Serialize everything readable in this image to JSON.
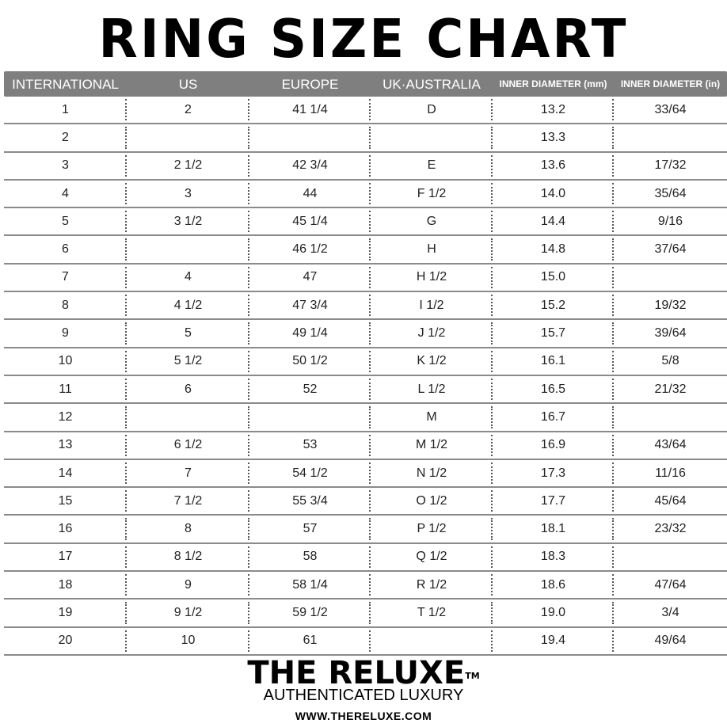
{
  "title": "RING SIZE CHART",
  "headers": [
    "INTERNATIONAL",
    "US",
    "EUROPE",
    "UK·AUSTRALIA",
    "INNER DIAMETER (mm)",
    "INNER DIAMETER (in)"
  ],
  "rows": [
    [
      "1",
      "2",
      "41 1/4",
      "D",
      "13.2",
      "33/64"
    ],
    [
      "2",
      "",
      "",
      "",
      "13.3",
      ""
    ],
    [
      "3",
      "2 1/2",
      "42 3/4",
      "E",
      "13.6",
      "17/32"
    ],
    [
      "4",
      "3",
      "44",
      "F 1/2",
      "14.0",
      "35/64"
    ],
    [
      "5",
      "3 1/2",
      "45 1/4",
      "G",
      "14.4",
      "9/16"
    ],
    [
      "6",
      "",
      "46 1/2",
      "H",
      "14.8",
      "37/64"
    ],
    [
      "7",
      "4",
      "47",
      "H 1/2",
      "15.0",
      ""
    ],
    [
      "8",
      "4 1/2",
      "47 3/4",
      "I 1/2",
      "15.2",
      "19/32"
    ],
    [
      "9",
      "5",
      "49 1/4",
      "J 1/2",
      "15.7",
      "39/64"
    ],
    [
      "10",
      "5 1/2",
      "50 1/2",
      "K 1/2",
      "16.1",
      "5/8"
    ],
    [
      "11",
      "6",
      "52",
      "L 1/2",
      "16.5",
      "21/32"
    ],
    [
      "12",
      "",
      "",
      "M",
      "16.7",
      ""
    ],
    [
      "13",
      "6 1/2",
      "53",
      "M 1/2",
      "16.9",
      "43/64"
    ],
    [
      "14",
      "7",
      "54 1/2",
      "N 1/2",
      "17.3",
      "11/16"
    ],
    [
      "15",
      "7 1/2",
      "55 3/4",
      "O 1/2",
      "17.7",
      "45/64"
    ],
    [
      "16",
      "8",
      "57",
      "P 1/2",
      "18.1",
      "23/32"
    ],
    [
      "17",
      "8 1/2",
      "58",
      "Q 1/2",
      "18.3",
      ""
    ],
    [
      "18",
      "9",
      "58 1/4",
      "R 1/2",
      "18.6",
      "47/64"
    ],
    [
      "19",
      "9 1/2",
      "59 1/2",
      "T 1/2",
      "19.0",
      "3/4"
    ],
    [
      "20",
      "10",
      "61",
      "",
      "19.4",
      "49/64"
    ]
  ],
  "footer": {
    "brand": "THE RELUXE",
    "trademark": "TM",
    "tagline": "AUTHENTICATED LUXURY",
    "url": "WWW.THERELUXE.COM"
  },
  "colors": {
    "header_bg": "#7f7f7f",
    "header_text": "#ffffff",
    "rule": "#8a8a8a"
  }
}
